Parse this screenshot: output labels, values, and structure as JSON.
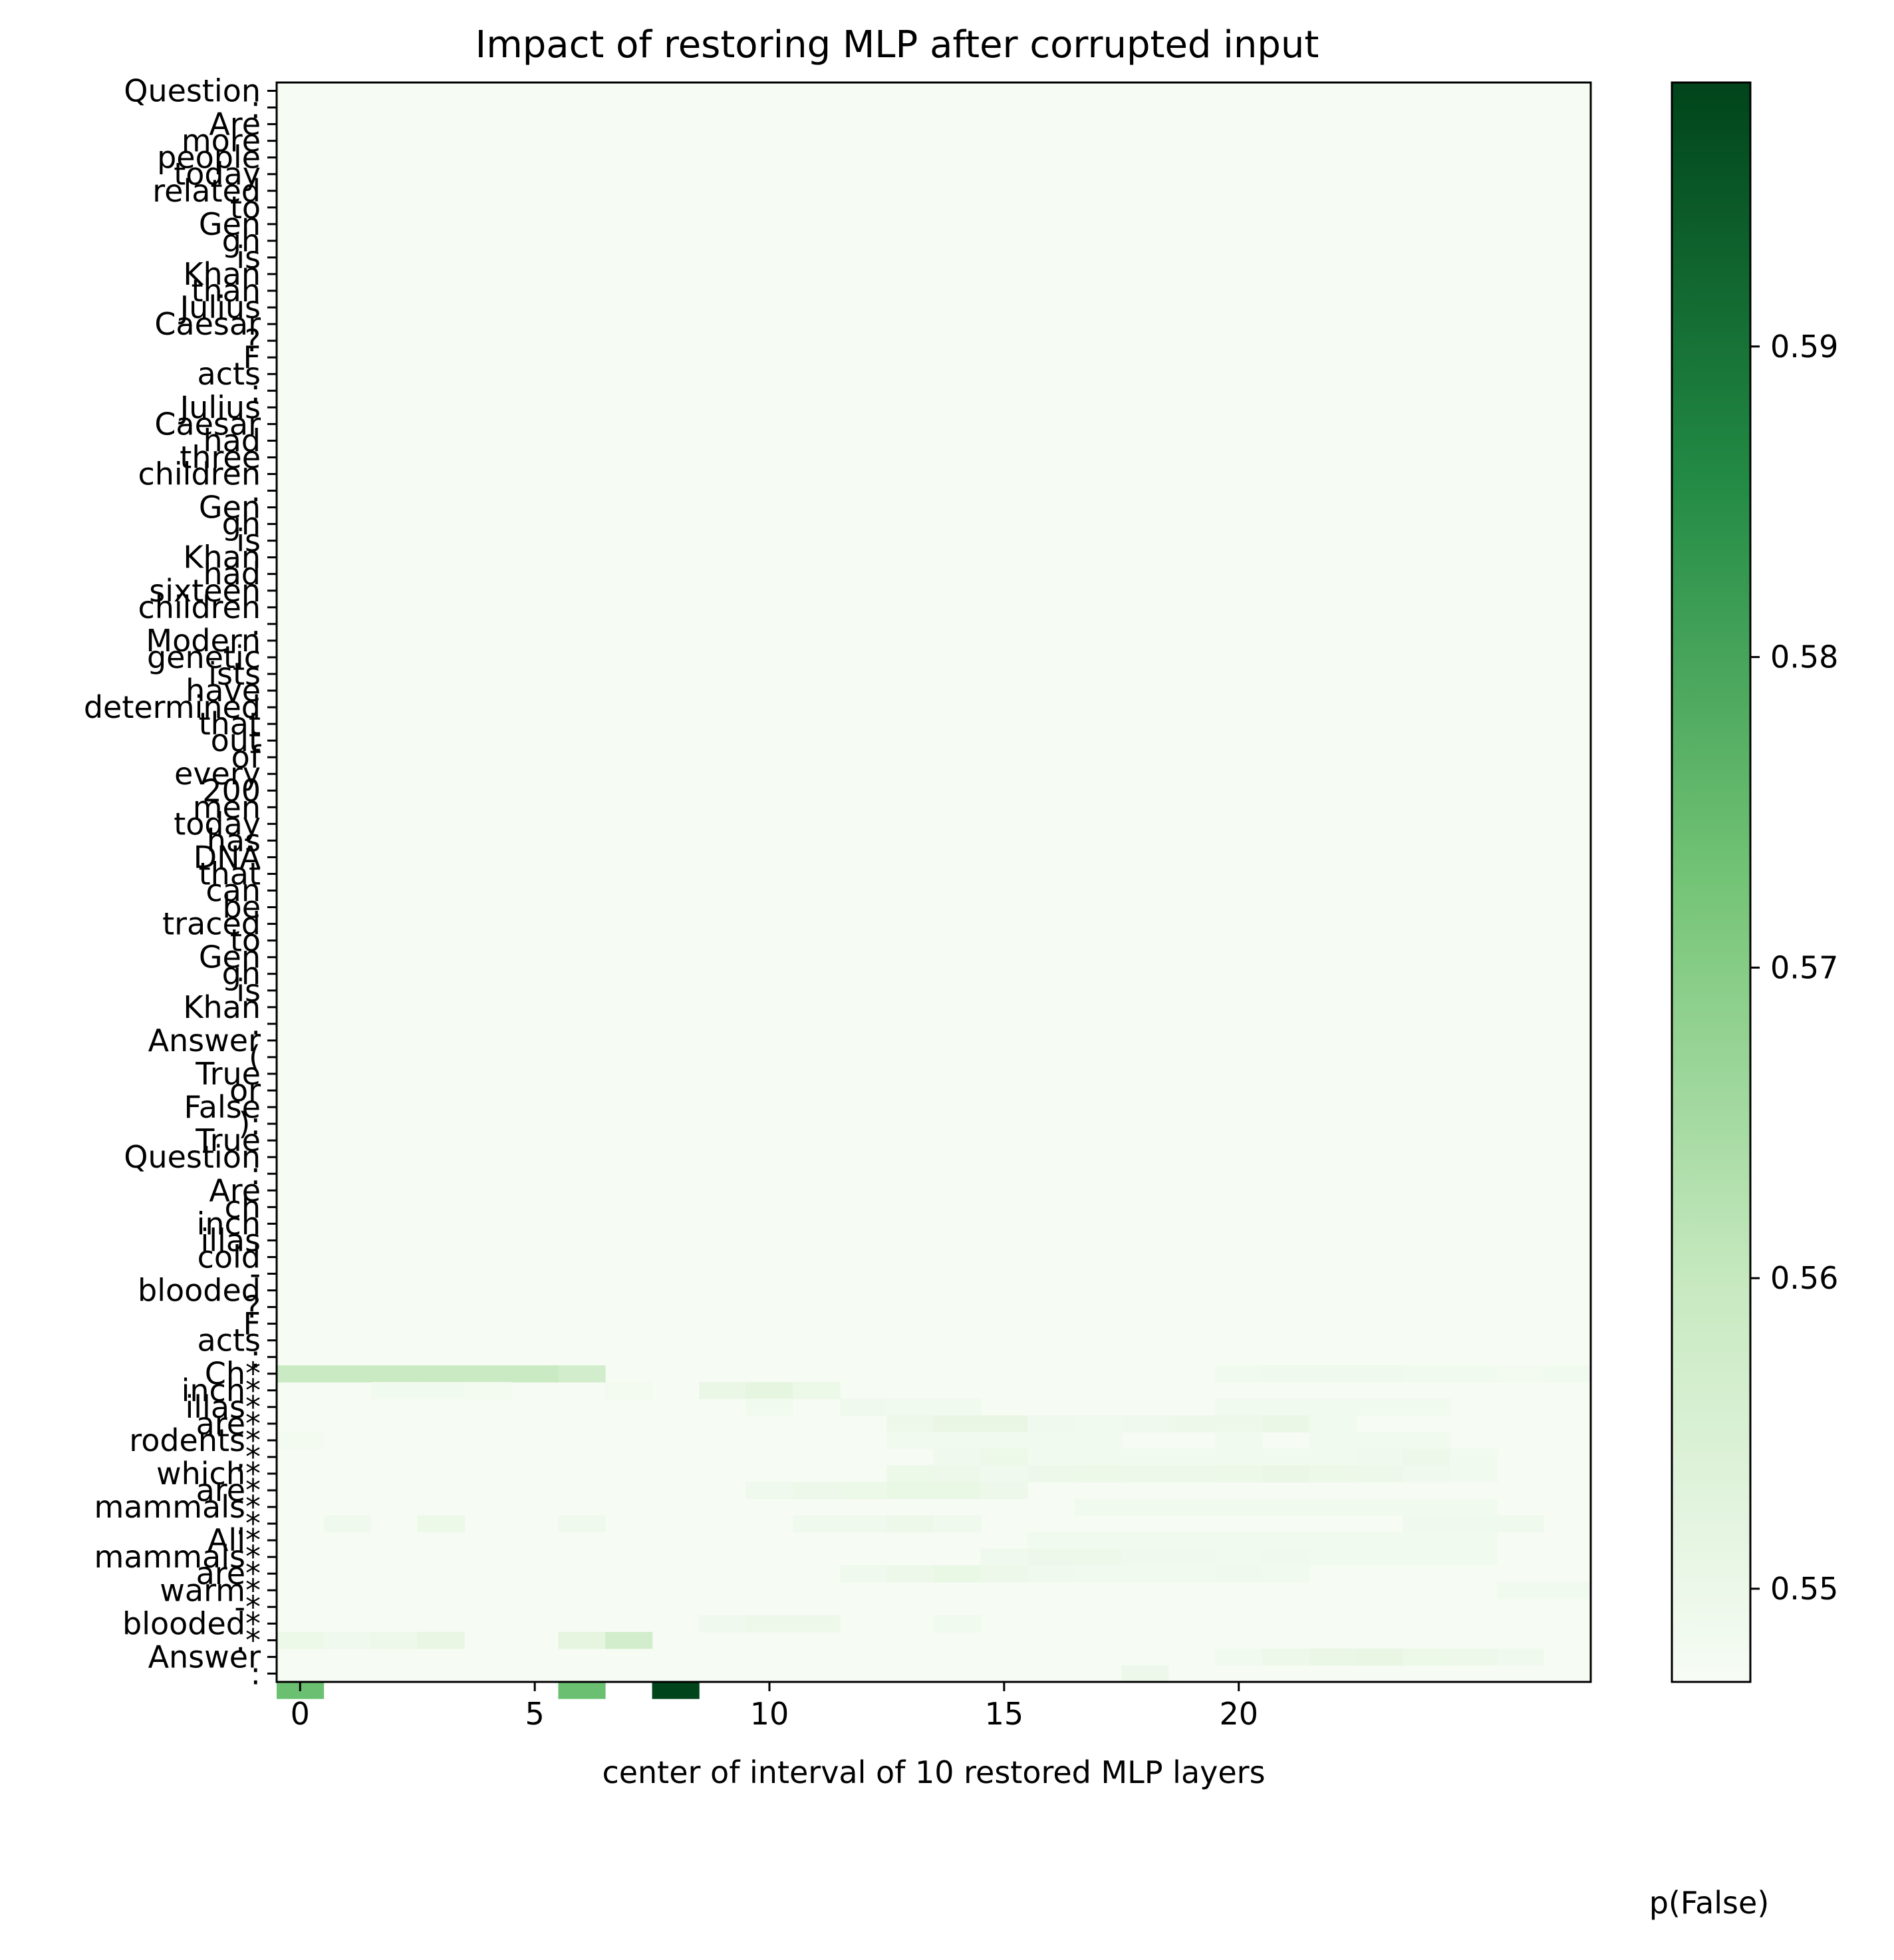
{
  "chart_data": {
    "type": "heatmap",
    "title": "Impact of restoring MLP after corrupted input",
    "xlabel": "center of interval of 10 restored MLP layers",
    "ylabel": "",
    "colorbar_label": "p(False)",
    "colormap": "Greens",
    "value_range": [
      0.547,
      0.5985
    ],
    "x_ticks": [
      0,
      5,
      10,
      15,
      20
    ],
    "x_columns": 28,
    "y_labels": [
      "Question",
      ":",
      "Are",
      "more",
      "people",
      "today",
      "related",
      "to",
      "Gen",
      "gh",
      "is",
      "Khan",
      "than",
      "Julius",
      "Caesar",
      "?",
      "F",
      "acts",
      ":",
      "Julius",
      "Caesar",
      "had",
      "three",
      "children",
      ".",
      "Gen",
      "gh",
      "is",
      "Khan",
      "had",
      "sixteen",
      "children",
      ".",
      "Modern",
      "genetic",
      "ists",
      "have",
      "determined",
      "that",
      "out",
      "of",
      "every",
      "200",
      "men",
      "today",
      "has",
      "DNA",
      "that",
      "can",
      "be",
      "traced",
      "to",
      "Gen",
      "gh",
      "is",
      "Khan",
      ".",
      "Answer",
      "(",
      "True",
      "or",
      "False",
      "):",
      "True",
      "Question",
      ":",
      "Are",
      "ch",
      "inch",
      "illas",
      "cold",
      "-",
      "blooded",
      "?",
      "F",
      "acts",
      ":",
      "Ch*",
      "inch*",
      "illas*",
      "are*",
      "rodents*",
      ",*",
      "which*",
      "are*",
      "mammals*",
      ".*",
      "All*",
      "mammals*",
      "are*",
      "warm*",
      "-*",
      "blooded*",
      ".*",
      "Answer",
      ":"
    ],
    "colorbar_ticks": [
      0.55,
      0.56,
      0.57,
      0.58,
      0.59
    ],
    "background_value": 0.5475,
    "cells": [
      {
        "row": 77,
        "cols": [
          0,
          1,
          2,
          3,
          4,
          5,
          6
        ],
        "values": [
          0.5595,
          0.5595,
          0.5595,
          0.5595,
          0.5595,
          0.5595,
          0.5575
        ]
      },
      {
        "row": 77,
        "cols": [
          20,
          21,
          22,
          23,
          24,
          25,
          26,
          27
        ],
        "values": [
          0.549,
          0.5495,
          0.5495,
          0.5495,
          0.549,
          0.549,
          0.5485,
          0.549
        ]
      },
      {
        "row": 78,
        "cols": [
          2,
          3,
          4,
          7,
          9,
          10,
          11
        ],
        "values": [
          0.549,
          0.549,
          0.5485,
          0.5485,
          0.5515,
          0.5535,
          0.551
        ]
      },
      {
        "row": 79,
        "cols": [
          10,
          12,
          13,
          14,
          20,
          21,
          22,
          23,
          24
        ],
        "values": [
          0.549,
          0.5495,
          0.549,
          0.549,
          0.549,
          0.549,
          0.549,
          0.549,
          0.549
        ]
      },
      {
        "row": 80,
        "cols": [
          13,
          14,
          15,
          16,
          17,
          18,
          19,
          20,
          21,
          22
        ],
        "values": [
          0.5505,
          0.5525,
          0.5525,
          0.5495,
          0.549,
          0.5495,
          0.5505,
          0.5505,
          0.5515,
          0.549
        ]
      },
      {
        "row": 81,
        "cols": [
          0,
          13,
          14,
          15,
          16,
          17,
          20,
          22,
          23,
          24
        ],
        "values": [
          0.5485,
          0.549,
          0.549,
          0.549,
          0.549,
          0.549,
          0.549,
          0.549,
          0.549,
          0.549
        ]
      },
      {
        "row": 82,
        "cols": [
          14,
          15,
          16,
          17,
          18,
          19,
          20,
          21,
          22,
          23,
          24,
          25
        ],
        "values": [
          0.5495,
          0.551,
          0.549,
          0.549,
          0.549,
          0.549,
          0.549,
          0.549,
          0.549,
          0.5495,
          0.5505,
          0.549
        ]
      },
      {
        "row": 83,
        "cols": [
          13,
          14,
          15,
          16,
          17,
          18,
          19,
          20,
          21,
          22,
          23,
          24,
          25
        ],
        "values": [
          0.551,
          0.5505,
          0.5495,
          0.5505,
          0.551,
          0.5505,
          0.5505,
          0.551,
          0.5515,
          0.551,
          0.5505,
          0.5495,
          0.549
        ]
      },
      {
        "row": 84,
        "cols": [
          10,
          11,
          12,
          13,
          14,
          15
        ],
        "values": [
          0.5495,
          0.5505,
          0.551,
          0.552,
          0.552,
          0.5505
        ]
      },
      {
        "row": 85,
        "cols": [
          17,
          18,
          19,
          20,
          21,
          22,
          23,
          24,
          25
        ],
        "values": [
          0.549,
          0.549,
          0.549,
          0.549,
          0.549,
          0.549,
          0.549,
          0.549,
          0.549
        ]
      },
      {
        "row": 86,
        "cols": [
          1,
          3,
          6,
          11,
          12,
          13,
          14,
          24,
          25,
          26
        ],
        "values": [
          0.5495,
          0.551,
          0.5495,
          0.5495,
          0.5495,
          0.5505,
          0.5495,
          0.5495,
          0.5495,
          0.5495
        ]
      },
      {
        "row": 87,
        "cols": [
          16,
          17,
          18,
          19,
          20,
          21,
          22,
          23,
          24,
          25
        ],
        "values": [
          0.549,
          0.549,
          0.549,
          0.549,
          0.549,
          0.549,
          0.549,
          0.549,
          0.549,
          0.549
        ]
      },
      {
        "row": 88,
        "cols": [
          15,
          16,
          17,
          18,
          19,
          20,
          21,
          22,
          23,
          24,
          25
        ],
        "values": [
          0.5495,
          0.5505,
          0.5505,
          0.5495,
          0.5495,
          0.549,
          0.5495,
          0.549,
          0.549,
          0.549,
          0.549
        ]
      },
      {
        "row": 89,
        "cols": [
          12,
          13,
          14,
          15,
          16,
          17,
          18,
          19,
          20,
          21
        ],
        "values": [
          0.5495,
          0.5505,
          0.552,
          0.5505,
          0.5495,
          0.549,
          0.549,
          0.549,
          0.5495,
          0.549
        ]
      },
      {
        "row": 90,
        "cols": [
          26,
          27
        ],
        "values": [
          0.549,
          0.549
        ]
      },
      {
        "row": 92,
        "cols": [
          9,
          10,
          11,
          14
        ],
        "values": [
          0.5495,
          0.5505,
          0.5505,
          0.549
        ]
      },
      {
        "row": 93,
        "cols": [
          0,
          1,
          2,
          3,
          6,
          7
        ],
        "values": [
          0.551,
          0.5495,
          0.5505,
          0.5525,
          0.5535,
          0.5575
        ]
      },
      {
        "row": 94,
        "cols": [
          20,
          21,
          22,
          23,
          24,
          25,
          26
        ],
        "values": [
          0.549,
          0.5505,
          0.5515,
          0.5525,
          0.551,
          0.5505,
          0.5495
        ]
      },
      {
        "row": 95,
        "cols": [
          18
        ],
        "values": [
          0.5505
        ]
      },
      {
        "row": 96,
        "cols": [
          0,
          6,
          8
        ],
        "values": [
          0.574,
          0.574,
          0.5985
        ]
      }
    ]
  }
}
